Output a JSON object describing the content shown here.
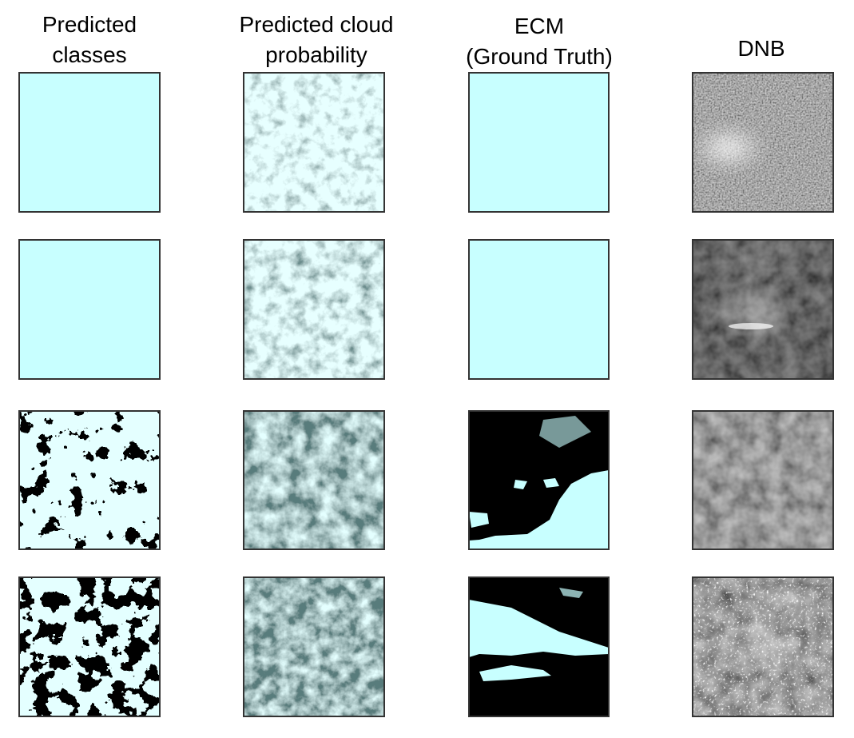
{
  "columns": [
    {
      "lines": [
        "Predicted",
        "classes"
      ]
    },
    {
      "lines": [
        "Predicted cloud",
        "probability"
      ]
    },
    {
      "lines": [
        "ECM",
        "(Ground Truth)"
      ]
    },
    {
      "lines": [
        "DNB"
      ]
    }
  ]
}
